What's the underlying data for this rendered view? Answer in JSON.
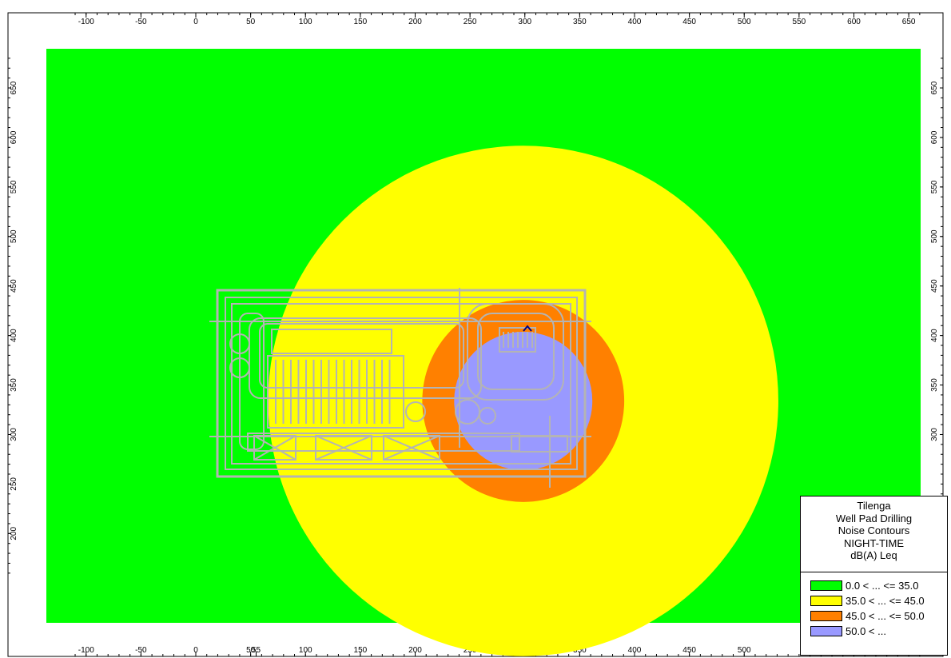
{
  "axes": {
    "x_ticks": [
      "-100",
      "-50",
      "0",
      "50",
      "100",
      "150",
      "200",
      "250",
      "300",
      "350",
      "400",
      "450",
      "500",
      "550",
      "600",
      "650"
    ],
    "x_ticks_bottom": [
      "-100",
      "-50",
      "0",
      "50",
      "100",
      "150",
      "200",
      "250",
      "300",
      "350",
      "400",
      "450",
      "500",
      "55"
    ],
    "y_ticks": [
      "650",
      "600",
      "550",
      "500",
      "450",
      "400",
      "350",
      "300",
      "250",
      "200"
    ],
    "y_ticks_right": [
      "650",
      "600",
      "550",
      "500",
      "450",
      "400",
      "350",
      "300"
    ]
  },
  "legend": {
    "title_lines": [
      "Tilenga",
      "Well Pad Drilling",
      "Noise Contours",
      "NIGHT-TIME",
      "dB(A) Leq"
    ],
    "items": [
      {
        "label": "0.0 < ... <= 35.0",
        "color": "#00ff00"
      },
      {
        "label": "35.0 < ... <= 45.0",
        "color": "#ffff00"
      },
      {
        "label": "45.0 < ... <= 50.0",
        "color": "#ff8000"
      },
      {
        "label": "50.0 < ...",
        "color": "#9999ff"
      }
    ]
  },
  "contours": {
    "source_x": 298,
    "source_y": 398,
    "bands": [
      {
        "level": "35.0",
        "radius": 240,
        "color": "#ffff00"
      },
      {
        "level": "45.0",
        "radius": 95,
        "color": "#ff8000"
      },
      {
        "level": "50.0",
        "radius": 65,
        "color": "#9999ff"
      }
    ],
    "background_color": "#00ff00",
    "site_plan_color": "#b4b4b4"
  }
}
